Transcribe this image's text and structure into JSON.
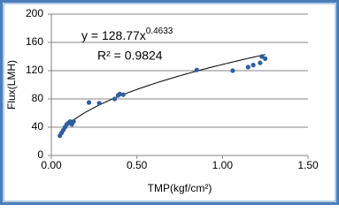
{
  "chart_data": {
    "type": "scatter",
    "x_label": "TMP(kgf/cm²)",
    "y_label": "Flux(LMH)",
    "color": "#2f5f9e",
    "x": [
      0.05,
      0.06,
      0.07,
      0.08,
      0.09,
      0.1,
      0.11,
      0.12,
      0.13,
      0.22,
      0.28,
      0.37,
      0.39,
      0.4,
      0.42,
      0.85,
      1.06,
      1.15,
      1.18,
      1.22,
      1.23,
      1.25
    ],
    "values": [
      28,
      32,
      36,
      40,
      44,
      46,
      48,
      44,
      48,
      75,
      74,
      80,
      85,
      87,
      86,
      121,
      120,
      125,
      128,
      131,
      140,
      137
    ],
    "xlim": [
      0,
      1.5
    ],
    "ylim": [
      0,
      200
    ],
    "xticks": [
      {
        "value": 0,
        "label": "0.00"
      },
      {
        "value": 0.5,
        "label": "0.50"
      },
      {
        "value": 1,
        "label": "1.00"
      },
      {
        "value": 1.5,
        "label": "1.50"
      }
    ],
    "yticks": [
      0,
      40,
      80,
      120,
      160,
      200
    ],
    "grid": true,
    "trendline": {
      "coefficient": 128.77,
      "exponent": 0.4633,
      "equation": "y = 128.77x",
      "exponent_label": "0.4633",
      "r_squared_label": "R² = 0.9824"
    }
  }
}
